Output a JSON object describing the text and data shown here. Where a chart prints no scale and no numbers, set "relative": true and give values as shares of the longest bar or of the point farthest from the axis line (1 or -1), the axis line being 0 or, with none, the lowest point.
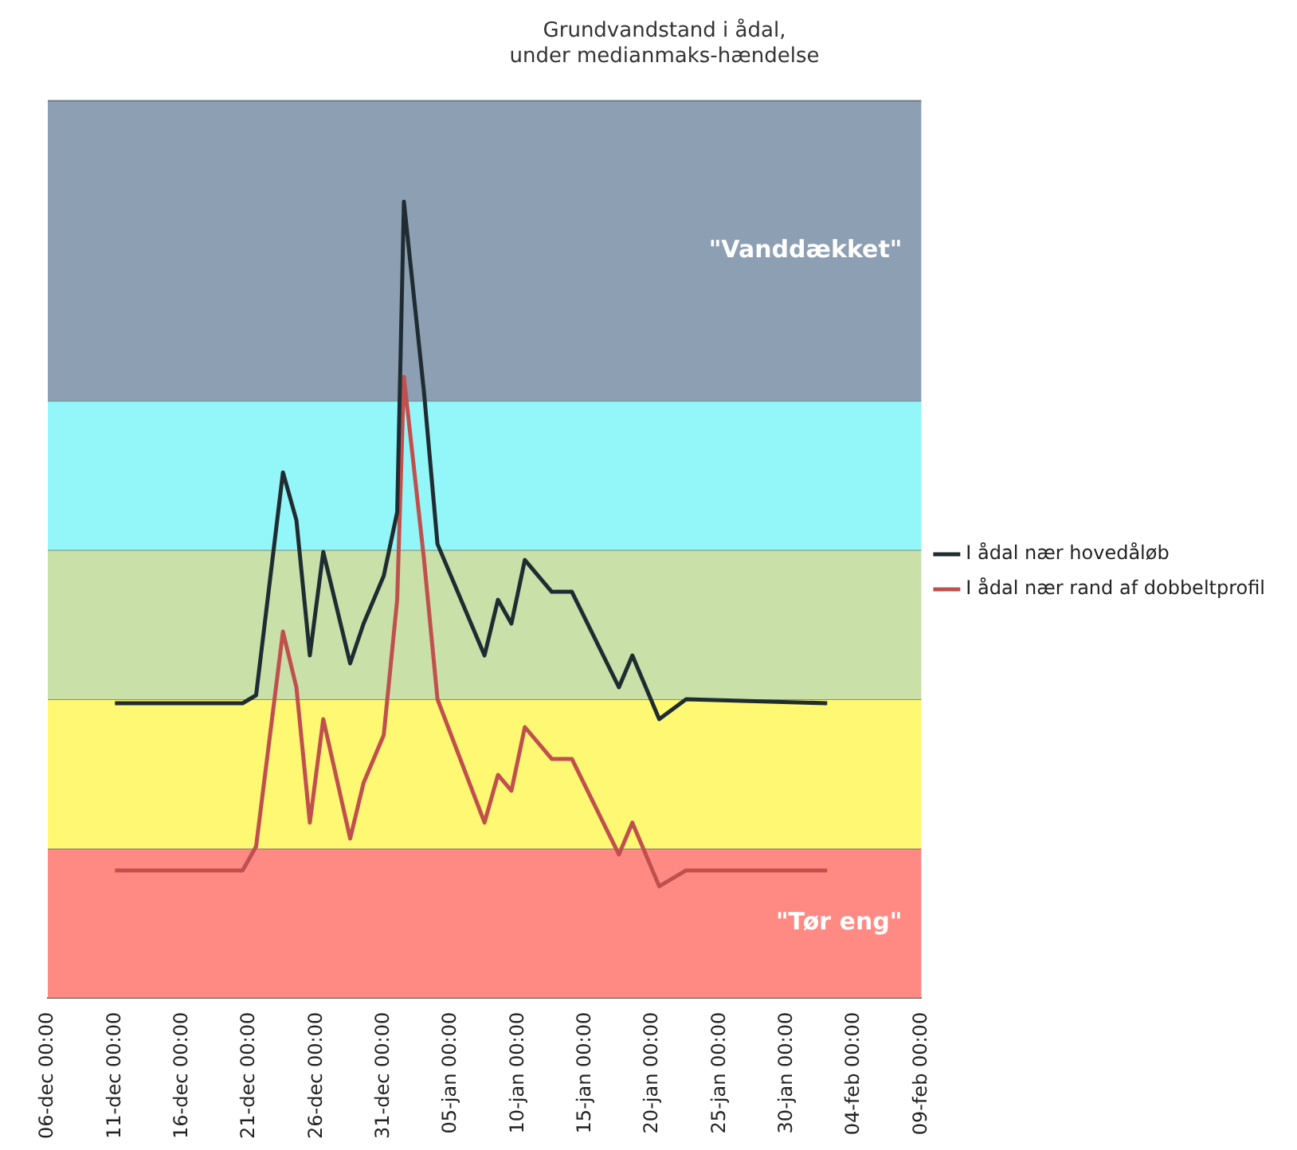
{
  "chart_data": {
    "type": "line",
    "title": "Grundvandstand i ådal,\nunder medianmaks-hændelse",
    "relative": true,
    "legend": "right",
    "xlim": [
      "2000-12-06",
      "2001-02-09"
    ],
    "xticks": [
      {
        "value": "2000-12-06",
        "label": "06-dec 00:00"
      },
      {
        "value": "2000-12-11",
        "label": "11-dec 00:00"
      },
      {
        "value": "2000-12-16",
        "label": "16-dec 00:00"
      },
      {
        "value": "2000-12-21",
        "label": "21-dec 00:00"
      },
      {
        "value": "2000-12-26",
        "label": "26-dec 00:00"
      },
      {
        "value": "2000-12-31",
        "label": "31-dec 00:00"
      },
      {
        "value": "2001-01-05",
        "label": "05-jan 00:00"
      },
      {
        "value": "2001-01-10",
        "label": "10-jan 00:00"
      },
      {
        "value": "2001-01-15",
        "label": "15-jan 00:00"
      },
      {
        "value": "2001-01-20",
        "label": "20-jan 00:00"
      },
      {
        "value": "2001-01-25",
        "label": "25-jan 00:00"
      },
      {
        "value": "2001-01-30",
        "label": "30-jan 00:00"
      },
      {
        "value": "2001-02-04",
        "label": "04-feb 00:00"
      },
      {
        "value": "2001-02-09",
        "label": "09-feb 00:00"
      }
    ],
    "x": [
      "2000-12-11",
      "2000-12-20T12:00",
      "2000-12-21T12:00",
      "2000-12-23T12:00",
      "2000-12-24T12:00",
      "2000-12-25T12:00",
      "2000-12-26T12:00",
      "2000-12-28T12:00",
      "2000-12-29T12:00",
      "2000-12-31",
      "2001-01-01",
      "2001-01-01T12:00",
      "2001-01-03",
      "2001-01-04",
      "2001-01-07T12:00",
      "2001-01-08T12:00",
      "2001-01-09T12:00",
      "2001-01-10T12:00",
      "2001-01-12T12:00",
      "2001-01-14",
      "2001-01-17T12:00",
      "2001-01-18T12:00",
      "2001-01-20T12:00",
      "2001-01-22T12:00",
      "2001-02-02"
    ],
    "series": [
      {
        "name": "I ådal nær hovedåløb",
        "color": "#1f2d33",
        "values": [
          0.37,
          0.37,
          0.38,
          0.66,
          0.6,
          0.43,
          0.56,
          0.42,
          0.47,
          0.53,
          0.61,
          1,
          0.76,
          0.57,
          0.43,
          0.5,
          0.47,
          0.55,
          0.51,
          0.51,
          0.39,
          0.43,
          0.35,
          0.375,
          0.37
        ]
      },
      {
        "name": "I ådal nær rand af dobbeltprofil",
        "color": "#c0504d",
        "values": [
          0.16,
          0.16,
          0.19,
          0.46,
          0.39,
          0.22,
          0.35,
          0.2,
          0.27,
          0.33,
          0.5,
          0.78,
          0.55,
          0.375,
          0.22,
          0.28,
          0.26,
          0.34,
          0.3,
          0.3,
          0.18,
          0.22,
          0.14,
          0.16,
          0.16
        ]
      }
    ],
    "bands": [
      {
        "axis": "y",
        "from": 0,
        "to": 0.1875,
        "color": "#ff8a84",
        "label": "\"Tør eng\""
      },
      {
        "axis": "y",
        "from": 0.1875,
        "to": 0.375,
        "color": "#fff873"
      },
      {
        "axis": "y",
        "from": 0.375,
        "to": 0.5625,
        "color": "#c9e0a8"
      },
      {
        "axis": "y",
        "from": 0.5625,
        "to": 0.75,
        "color": "#93f6f9"
      },
      {
        "axis": "y",
        "from": 0.75,
        "to": 1.127,
        "color": "#8d9fb3",
        "label": "\"Vanddækket\""
      }
    ]
  }
}
